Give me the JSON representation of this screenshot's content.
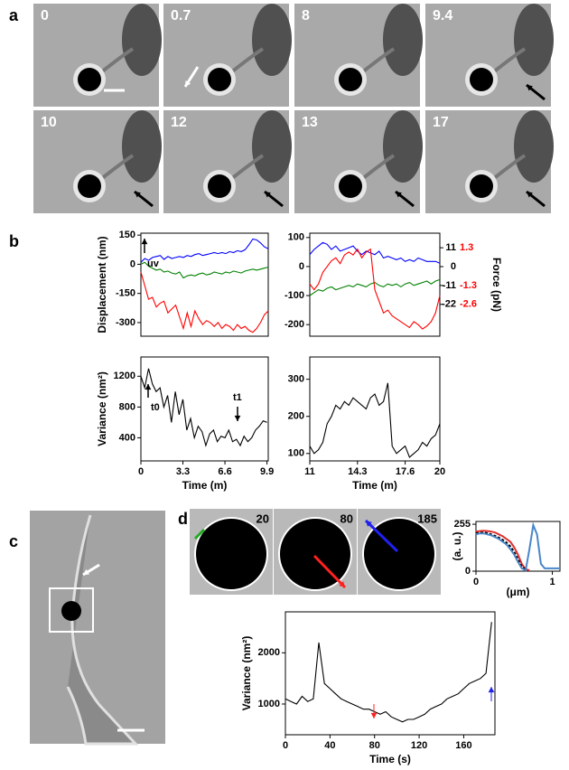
{
  "panel_labels": [
    "a",
    "b",
    "c",
    "d"
  ],
  "panel_a": {
    "timestamps": [
      "0",
      "0.7",
      "8",
      "9.4",
      "10",
      "12",
      "13",
      "17"
    ]
  },
  "panel_d": {
    "frame_labels": [
      "20",
      "80",
      "185"
    ]
  },
  "chart_data": [
    {
      "type": "line",
      "ylabel": "Displacement (nm)",
      "annotations": [
        "uv"
      ],
      "x": [
        0,
        0.3,
        0.6,
        0.9,
        1.2,
        1.5,
        1.8,
        2.1,
        2.4,
        2.7,
        3,
        3.3,
        3.6,
        3.9,
        4.2,
        4.5,
        4.8,
        5.1,
        5.4,
        5.7,
        6,
        6.3,
        6.6,
        6.9,
        7.2,
        7.5,
        7.8,
        8.1,
        8.4,
        8.7,
        9,
        9.3,
        9.6,
        9.9
      ],
      "xlim": [
        0,
        9.9
      ],
      "ylim": [
        -370,
        160
      ],
      "yticks": [
        150,
        0,
        -150,
        -300
      ],
      "series": [
        {
          "color": "#0000ff",
          "values": [
            10,
            30,
            20,
            35,
            40,
            45,
            25,
            40,
            30,
            35,
            40,
            35,
            45,
            40,
            50,
            55,
            45,
            50,
            55,
            60,
            55,
            60,
            55,
            65,
            60,
            70,
            65,
            75,
            100,
            130,
            125,
            110,
            90,
            80
          ]
        },
        {
          "color": "#008000",
          "values": [
            0,
            10,
            -10,
            -20,
            -30,
            -25,
            -40,
            -35,
            -45,
            -50,
            -40,
            -70,
            -60,
            -55,
            -60,
            -50,
            -45,
            -55,
            -50,
            -40,
            -45,
            -50,
            -40,
            -45,
            -35,
            -40,
            -45,
            -35,
            -30,
            -25,
            -30,
            -25,
            -20,
            -15
          ]
        },
        {
          "color": "#ff0000",
          "values": [
            -40,
            -110,
            -180,
            -170,
            -220,
            -200,
            -190,
            -250,
            -230,
            -210,
            -270,
            -330,
            -250,
            -320,
            -240,
            -280,
            -310,
            -290,
            -300,
            -320,
            -300,
            -330,
            -310,
            -320,
            -340,
            -310,
            -330,
            -320,
            -340,
            -350,
            -330,
            -300,
            -260,
            -240
          ]
        }
      ]
    },
    {
      "type": "line",
      "y2label": "Force (pN)",
      "x": [
        11,
        11.3,
        11.6,
        11.9,
        12.2,
        12.5,
        12.8,
        13.1,
        13.4,
        13.7,
        14,
        14.3,
        14.6,
        14.9,
        15.2,
        15.5,
        15.8,
        16.1,
        16.4,
        16.7,
        17,
        17.3,
        17.6,
        17.9,
        18.2,
        18.5,
        18.8,
        19.1,
        19.4,
        19.7,
        20
      ],
      "xlim": [
        11,
        20
      ],
      "ylim": [
        -240,
        115
      ],
      "yticks": [
        100,
        0,
        -100,
        -200
      ],
      "y2lim": [
        -40.6,
        19.5
      ],
      "y2ticks": [
        11,
        0,
        -11,
        -22
      ],
      "y2ticks_force": [
        {
          "value": 11,
          "label": "1.3"
        },
        {
          "value": -11,
          "label": "-1.3"
        },
        {
          "value": -22,
          "label": "-2.6"
        }
      ],
      "y2ticks_force_color": "#ff0000",
      "series": [
        {
          "color": "#0000ff",
          "axis": "y2",
          "values": [
            7,
            10,
            12,
            14,
            13,
            10,
            12,
            9,
            10,
            11,
            12,
            9,
            7,
            9,
            8,
            7,
            9,
            5,
            6,
            5,
            4,
            5,
            3,
            4,
            3,
            5,
            4,
            3,
            3,
            3,
            2
          ]
        },
        {
          "color": "#008000",
          "values": [
            -100,
            -90,
            -80,
            -85,
            -75,
            -70,
            -80,
            -75,
            -70,
            -65,
            -70,
            -60,
            -65,
            -70,
            -60,
            -55,
            -65,
            -70,
            -60,
            -65,
            -60,
            -70,
            -60,
            -55,
            -65,
            -60,
            -55,
            -50,
            -60,
            -50,
            -45
          ]
        },
        {
          "color": "#ff0000",
          "values": [
            -60,
            -80,
            -60,
            -20,
            0,
            20,
            30,
            10,
            40,
            50,
            40,
            60,
            30,
            50,
            60,
            -80,
            -120,
            -160,
            -150,
            -170,
            -180,
            -190,
            -200,
            -210,
            -190,
            -200,
            -215,
            -205,
            -190,
            -160,
            -100
          ]
        }
      ]
    },
    {
      "type": "line",
      "ylabel": "Variance (nm²)",
      "xlabel": "Time (m)",
      "annotations": [
        "t0",
        "t1"
      ],
      "x": [
        0,
        0.3,
        0.6,
        0.9,
        1.2,
        1.5,
        1.8,
        2.1,
        2.4,
        2.7,
        3,
        3.3,
        3.6,
        3.9,
        4.2,
        4.5,
        4.8,
        5.1,
        5.4,
        5.7,
        6,
        6.3,
        6.6,
        6.9,
        7.2,
        7.5,
        7.8,
        8.1,
        8.4,
        8.7,
        9,
        9.3,
        9.6,
        9.9
      ],
      "xlim": [
        0,
        10
      ],
      "ylim": [
        100,
        1450
      ],
      "xticks": [
        0,
        3.3,
        6.6,
        9.9
      ],
      "yticks": [
        400,
        800,
        1200
      ],
      "series": [
        {
          "color": "#000000",
          "values": [
            1200,
            1050,
            1300,
            1100,
            1000,
            1050,
            800,
            950,
            600,
            1000,
            700,
            900,
            500,
            650,
            400,
            550,
            480,
            300,
            450,
            500,
            350,
            420,
            400,
            500,
            350,
            380,
            300,
            420,
            350,
            400,
            500,
            550,
            620,
            600
          ]
        }
      ]
    },
    {
      "type": "line",
      "xlabel": "Time (m)",
      "x": [
        11,
        11.3,
        11.6,
        11.9,
        12.2,
        12.5,
        12.8,
        13.1,
        13.4,
        13.7,
        14,
        14.3,
        14.6,
        14.9,
        15.2,
        15.5,
        15.8,
        16.1,
        16.4,
        16.7,
        17,
        17.3,
        17.6,
        17.9,
        18.2,
        18.5,
        18.8,
        19.1,
        19.4,
        19.7,
        20
      ],
      "xlim": [
        11,
        20
      ],
      "ylim": [
        80,
        360
      ],
      "xticks": [
        11,
        14.3,
        17.6,
        20
      ],
      "yticks": [
        100,
        200,
        300
      ],
      "series": [
        {
          "color": "#000000",
          "values": [
            120,
            100,
            110,
            130,
            180,
            200,
            230,
            220,
            240,
            230,
            250,
            240,
            230,
            220,
            250,
            260,
            230,
            240,
            290,
            120,
            100,
            110,
            120,
            90,
            100,
            110,
            130,
            120,
            140,
            150,
            180
          ]
        }
      ]
    },
    {
      "type": "line",
      "ylabel": "(a. u.)",
      "xlabel": "(μm)",
      "x": [
        0,
        0.05,
        0.1,
        0.15,
        0.2,
        0.25,
        0.3,
        0.35,
        0.4,
        0.45,
        0.5,
        0.55,
        0.6,
        0.65,
        0.7,
        0.75,
        0.8,
        0.85,
        0.9,
        0.95,
        1,
        1.05,
        1.1
      ],
      "xlim": [
        0,
        1.1
      ],
      "ylim": [
        0,
        270
      ],
      "xticks": [
        0,
        1
      ],
      "yticks": [
        0,
        255
      ],
      "series": [
        {
          "color": "#e03030",
          "values": [
            215,
            218,
            220,
            218,
            215,
            210,
            200,
            190,
            175,
            160,
            130,
            90,
            40,
            10,
            5,
            null,
            null,
            null,
            null,
            null,
            null,
            null,
            null
          ]
        },
        {
          "color": "#000000",
          "dashed": true,
          "values": [
            205,
            208,
            210,
            206,
            200,
            192,
            182,
            170,
            155,
            135,
            105,
            65,
            25,
            8,
            null,
            null,
            null,
            null,
            null,
            null,
            null,
            null,
            null
          ]
        },
        {
          "color": "#4a86c8",
          "values": [
            200,
            205,
            205,
            200,
            195,
            185,
            175,
            160,
            145,
            120,
            90,
            50,
            15,
            5,
            120,
            250,
            200,
            40,
            15,
            15,
            15,
            15,
            15
          ]
        }
      ]
    },
    {
      "type": "line",
      "ylabel": "Variance (nm²)",
      "xlabel": "Time (s)",
      "x": [
        0,
        5,
        10,
        15,
        20,
        25,
        30,
        35,
        40,
        45,
        50,
        55,
        60,
        65,
        70,
        75,
        80,
        85,
        90,
        95,
        100,
        105,
        110,
        115,
        120,
        125,
        130,
        135,
        140,
        145,
        150,
        155,
        160,
        165,
        170,
        175,
        180,
        185
      ],
      "xlim": [
        0,
        188
      ],
      "ylim": [
        400,
        2800
      ],
      "xticks": [
        0,
        40,
        80,
        120,
        160
      ],
      "yticks": [
        1000,
        2000
      ],
      "series": [
        {
          "color": "#000000",
          "values": [
            1100,
            1050,
            1000,
            1150,
            1050,
            1100,
            2200,
            1400,
            1300,
            1200,
            1100,
            1050,
            1000,
            950,
            900,
            900,
            850,
            800,
            850,
            750,
            700,
            650,
            700,
            700,
            750,
            800,
            900,
            950,
            1000,
            1100,
            1150,
            1200,
            1300,
            1400,
            1450,
            1500,
            1600,
            2600
          ]
        }
      ]
    }
  ]
}
